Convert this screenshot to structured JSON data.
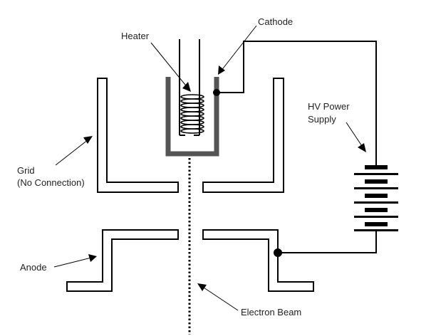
{
  "labels": {
    "heater": "Heater",
    "cathode": "Cathode",
    "hv_line1": "HV Power",
    "hv_line2": "Supply",
    "grid_line1": "Grid",
    "grid_line2": "(No Connection)",
    "anode": "Anode",
    "electron_beam": "Electron Beam"
  },
  "colors": {
    "ink": "#000000",
    "cathode_cup": "#555555",
    "text": "#222222",
    "background": "#ffffff"
  }
}
